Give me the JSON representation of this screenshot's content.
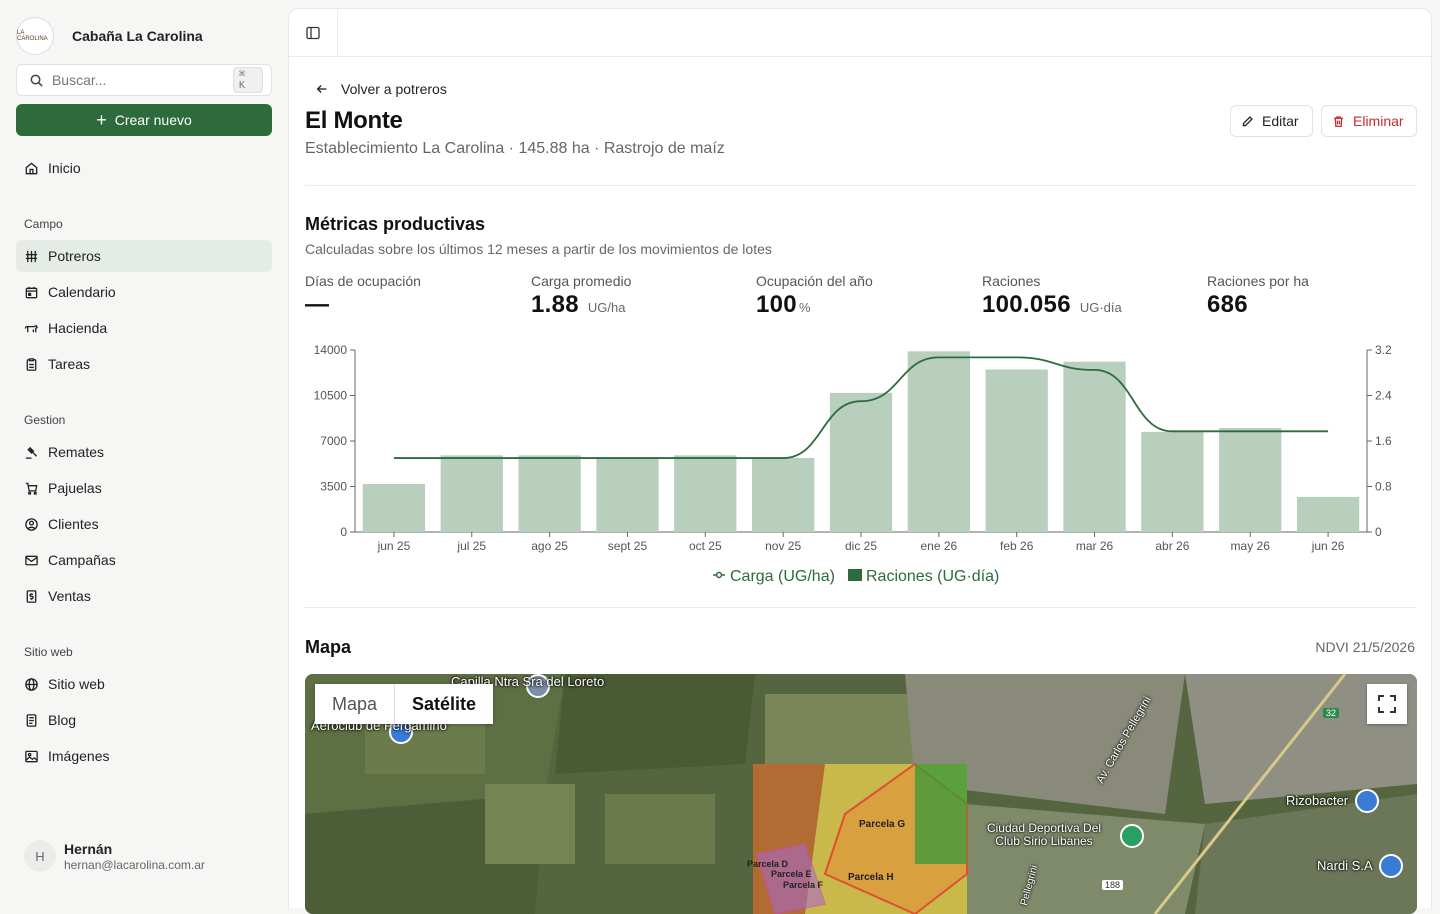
{
  "brand": {
    "name": "Cabaña La Carolina",
    "logo_text": "LA CAROLINA"
  },
  "search": {
    "placeholder": "Buscar...",
    "shortcut": "⌘ K"
  },
  "create_label": "Crear nuevo",
  "nav": {
    "home": "Inicio",
    "campo_title": "Campo",
    "campo": [
      "Potreros",
      "Calendario",
      "Hacienda",
      "Tareas"
    ],
    "gestion_title": "Gestion",
    "gestion": [
      "Remates",
      "Pajuelas",
      "Clientes",
      "Campañas",
      "Ventas"
    ],
    "web_title": "Sitio web",
    "web": [
      "Sitio web",
      "Blog",
      "Imágenes"
    ]
  },
  "user": {
    "initial": "H",
    "name": "Hernán",
    "email": "hernan@lacarolina.com.ar"
  },
  "page": {
    "back_label": "Volver a potreros",
    "title": "El Monte",
    "subtitle": "Establecimiento La Carolina · 145.88 ha · Rastrojo de maíz",
    "edit_label": "Editar",
    "delete_label": "Eliminar"
  },
  "metrics": {
    "title": "Métricas productivas",
    "subtitle": "Calculadas sobre los últimos 12 meses a partir de los movimientos de lotes",
    "items": [
      {
        "label": "Días de ocupación",
        "value": "—",
        "unit": ""
      },
      {
        "label": "Carga promedio",
        "value": "1.88",
        "unit": "UG/ha"
      },
      {
        "label": "Ocupación del año",
        "value": "100",
        "unit": "%"
      },
      {
        "label": "Raciones",
        "value": "100.056",
        "unit": "UG·día"
      },
      {
        "label": "Raciones por ha",
        "value": "686",
        "unit": ""
      }
    ]
  },
  "chart_data": {
    "type": "bar",
    "categories": [
      "jun 25",
      "jul 25",
      "ago 25",
      "sept 25",
      "oct 25",
      "nov 25",
      "dic 25",
      "ene 26",
      "feb 26",
      "mar 26",
      "abr 26",
      "may 26",
      "jun 26"
    ],
    "series": [
      {
        "name": "Raciones (UG·día)",
        "type": "bar",
        "axis": "left",
        "values": [
          3700,
          5900,
          5900,
          5700,
          5900,
          5700,
          10700,
          13900,
          12500,
          13100,
          7700,
          8000,
          2700
        ]
      },
      {
        "name": "Carga (UG/ha)",
        "type": "line",
        "axis": "right",
        "values": [
          1.3,
          1.3,
          1.3,
          1.3,
          1.3,
          1.3,
          2.3,
          3.07,
          3.07,
          2.85,
          1.77,
          1.77,
          1.77
        ]
      }
    ],
    "y_left_ticks": [
      "0",
      "3500",
      "7000",
      "10500",
      "14000"
    ],
    "y_right_ticks": [
      "0",
      "0.8",
      "1.6",
      "2.4",
      "3.2"
    ],
    "ylim_left": [
      0,
      14000
    ],
    "ylim_right": [
      0,
      3.2
    ],
    "legend_position": "bottom-center",
    "colors": {
      "bar": "#b9cfbe",
      "line": "#2d6b3c"
    }
  },
  "map": {
    "title": "Mapa",
    "ndvi": "NDVI 21/5/2026",
    "toggle": [
      "Mapa",
      "Satélite"
    ],
    "labels": [
      "Capilla Ntra Sra del Loreto",
      "Aeroclub de Pergamino",
      "Av. Carlos Pellegrini",
      "Ciudad Deportiva Del Club Sirio Libanes",
      "Rizobacter",
      "Nardi S.A",
      "Pellegrini",
      "188",
      "32"
    ],
    "parcels": [
      "Parcela G",
      "Parcela H",
      "Parcela D",
      "Parcela E",
      "Parcela F"
    ]
  }
}
